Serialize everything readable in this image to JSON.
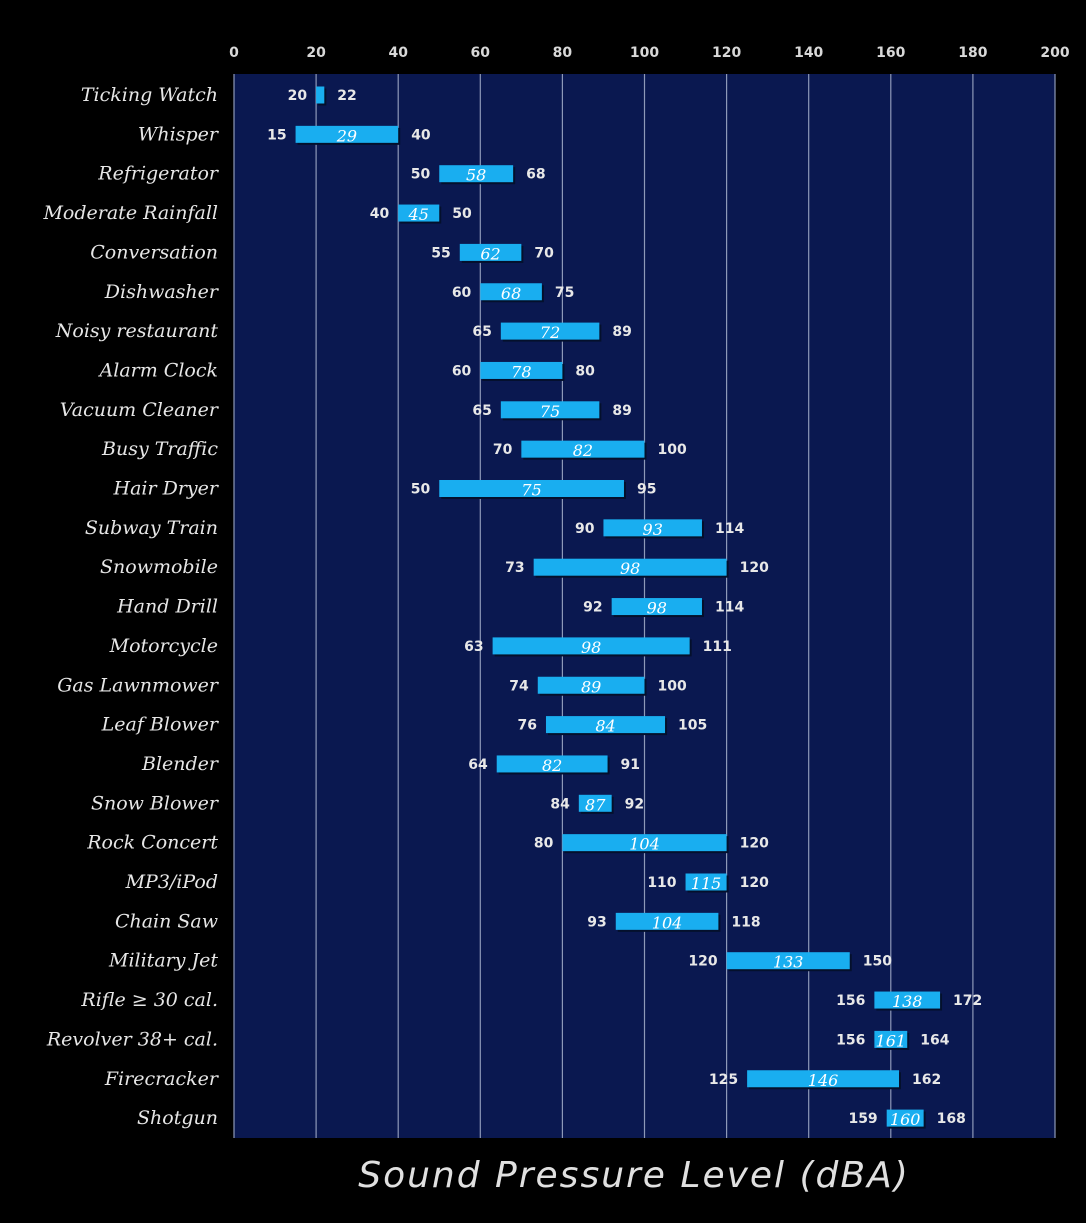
{
  "chart_data": {
    "type": "bar",
    "orientation": "horizontal-range",
    "xlabel": "Sound Pressure Level (dBA)",
    "xlim": [
      0,
      200
    ],
    "xticks": [
      0,
      20,
      40,
      60,
      80,
      100,
      120,
      140,
      160,
      180,
      200
    ],
    "grid": true,
    "colors": {
      "background": "#000000",
      "plot_bg": "#0a1850",
      "bar": "#19aef0",
      "grid": "#8e99b8"
    },
    "categories": [
      {
        "label": "Ticking Watch",
        "low": 20,
        "typical": null,
        "high": 22
      },
      {
        "label": "Whisper",
        "low": 15,
        "typical": 29,
        "high": 40
      },
      {
        "label": "Refrigerator",
        "low": 50,
        "typical": 58,
        "high": 68
      },
      {
        "label": "Moderate Rainfall",
        "low": 40,
        "typical": 45,
        "high": 50
      },
      {
        "label": "Conversation",
        "low": 55,
        "typical": 62,
        "high": 70
      },
      {
        "label": "Dishwasher",
        "low": 60,
        "typical": 68,
        "high": 75
      },
      {
        "label": "Noisy restaurant",
        "low": 65,
        "typical": 72,
        "high": 89
      },
      {
        "label": "Alarm Clock",
        "low": 60,
        "typical": 78,
        "high": 80
      },
      {
        "label": "Vacuum Cleaner",
        "low": 65,
        "typical": 75,
        "high": 89
      },
      {
        "label": "Busy Traffic",
        "low": 70,
        "typical": 82,
        "high": 100
      },
      {
        "label": "Hair Dryer",
        "low": 50,
        "typical": 75,
        "high": 95
      },
      {
        "label": "Subway Train",
        "low": 90,
        "typical": 93,
        "high": 114
      },
      {
        "label": "Snowmobile",
        "low": 73,
        "typical": 98,
        "high": 120
      },
      {
        "label": "Hand Drill",
        "low": 92,
        "typical": 98,
        "high": 114
      },
      {
        "label": "Motorcycle",
        "low": 63,
        "typical": 98,
        "high": 111
      },
      {
        "label": "Gas Lawnmower",
        "low": 74,
        "typical": 89,
        "high": 100
      },
      {
        "label": "Leaf Blower",
        "low": 76,
        "typical": 84,
        "high": 105
      },
      {
        "label": "Blender",
        "low": 64,
        "typical": 82,
        "high": 91
      },
      {
        "label": "Snow Blower",
        "low": 84,
        "typical": 87,
        "high": 92
      },
      {
        "label": "Rock Concert",
        "low": 80,
        "typical": 104,
        "high": 120
      },
      {
        "label": "MP3/iPod",
        "low": 110,
        "typical": 115,
        "high": 120
      },
      {
        "label": "Chain Saw",
        "low": 93,
        "typical": 104,
        "high": 118
      },
      {
        "label": "Military Jet",
        "low": 120,
        "typical": 133,
        "high": 150
      },
      {
        "label": "Rifle ≥ 30 cal.",
        "low": 156,
        "typical": 138,
        "high": 172
      },
      {
        "label": "Revolver 38+ cal.",
        "low": 156,
        "typical": 161,
        "high": 164
      },
      {
        "label": "Firecracker",
        "low": 125,
        "typical": 146,
        "high": 162
      },
      {
        "label": "Shotgun",
        "low": 159,
        "typical": 160,
        "high": 168
      }
    ]
  }
}
